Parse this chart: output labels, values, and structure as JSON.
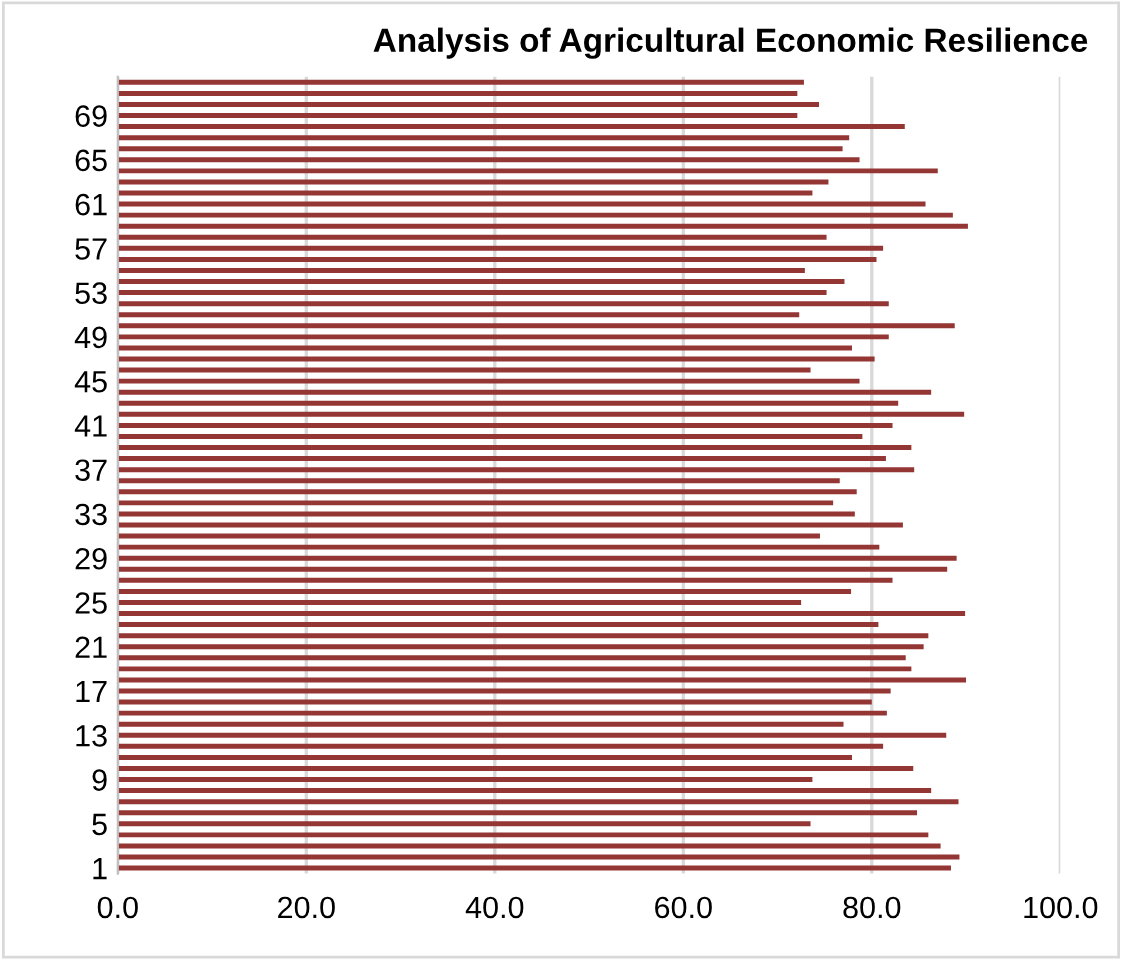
{
  "chart_data": {
    "type": "bar",
    "orientation": "horizontal",
    "title": "Analysis of Agricultural Economic Resilience",
    "categories": [
      null,
      null,
      null,
      "69",
      null,
      null,
      null,
      "65",
      null,
      null,
      null,
      "61",
      null,
      null,
      null,
      "57",
      null,
      null,
      null,
      "53",
      null,
      null,
      null,
      "49",
      null,
      null,
      null,
      "45",
      null,
      null,
      null,
      "41",
      null,
      null,
      null,
      "37",
      null,
      null,
      null,
      "33",
      null,
      null,
      null,
      "29",
      null,
      null,
      null,
      "25",
      null,
      null,
      null,
      "21",
      null,
      null,
      null,
      "17",
      null,
      null,
      null,
      "13",
      null,
      null,
      null,
      "9",
      null,
      null,
      null,
      "5",
      null,
      null,
      null,
      "1"
    ],
    "values": [
      72.8,
      72.1,
      74.4,
      72.1,
      83.5,
      77.6,
      76.9,
      78.7,
      87.0,
      75.4,
      73.7,
      85.7,
      88.6,
      90.2,
      75.2,
      81.2,
      80.5,
      72.9,
      77.1,
      75.2,
      81.8,
      72.3,
      88.8,
      81.8,
      77.9,
      80.3,
      73.5,
      78.7,
      86.3,
      82.8,
      89.8,
      82.2,
      79.0,
      84.2,
      81.5,
      84.5,
      76.6,
      78.4,
      75.9,
      78.2,
      83.3,
      74.5,
      80.8,
      89.0,
      88.0,
      82.2,
      77.8,
      72.5,
      89.9,
      80.7,
      86.0,
      85.5,
      83.6,
      84.2,
      90.0,
      82.0,
      80.0,
      81.6,
      77.0,
      87.9,
      81.2,
      77.9,
      84.4,
      73.7,
      86.3,
      89.2,
      84.8,
      73.5,
      86.0,
      87.3,
      89.3,
      88.4
    ],
    "color": "#943634",
    "xlim": [
      0,
      100
    ],
    "xticks": [
      {
        "value": 0,
        "label": "0.0"
      },
      {
        "value": 20,
        "label": "20.0"
      },
      {
        "value": 40,
        "label": "40.0"
      },
      {
        "value": 60,
        "label": "60.0"
      },
      {
        "value": 80,
        "label": "80.0"
      },
      {
        "value": 100,
        "label": "100.0"
      }
    ],
    "grid": "x",
    "legend": false
  }
}
